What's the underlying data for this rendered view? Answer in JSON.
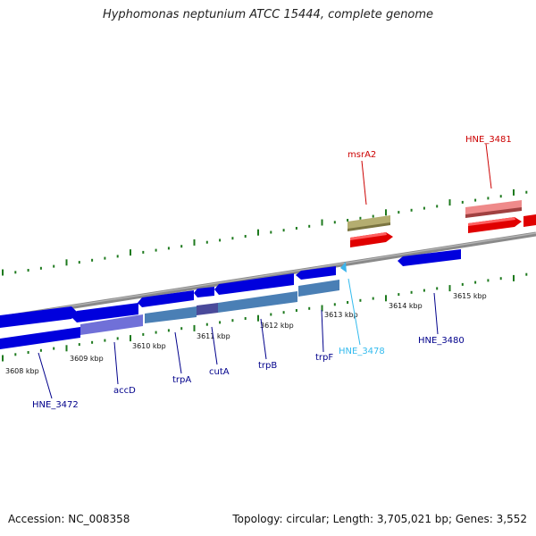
{
  "title": "Hyphomonas neptunium ATCC 15444, complete genome",
  "footer": {
    "accession": "Accession: NC_008358",
    "topology": "Topology: circular; Length: 3,705,021 bp; Genes: 3,552"
  },
  "colors": {
    "background": "#ffffff",
    "backbone": "#8a8a8a",
    "tick": "#1e7a1e",
    "cds_forward": "#e00000",
    "cds_reverse": "#0000dd",
    "cds_reverse_light": "#2a2aee",
    "gene_reverse_pale": "#4a7fb5",
    "trna": "#3cb4ec",
    "rrna_like": "#b4ad70",
    "label_blue": "#00008b",
    "label_red": "#cc0000",
    "label_cyan": "#33bbee"
  },
  "axis": {
    "unit": "kbp",
    "ticks": [
      "3608 kbp",
      "3609 kbp",
      "3610 kbp",
      "3611 kbp",
      "3612 kbp",
      "3613 kbp",
      "3614 kbp",
      "3615 kbp"
    ]
  },
  "genes": [
    {
      "label": "HNE_3472",
      "strand": "reverse",
      "color": "label_blue"
    },
    {
      "label": "accD",
      "strand": "reverse",
      "color": "label_blue"
    },
    {
      "label": "trpA",
      "strand": "reverse",
      "color": "label_blue"
    },
    {
      "label": "cutA",
      "strand": "reverse",
      "color": "label_blue"
    },
    {
      "label": "trpB",
      "strand": "reverse",
      "color": "label_blue"
    },
    {
      "label": "trpF",
      "strand": "reverse",
      "color": "label_blue"
    },
    {
      "label": "HNE_3478",
      "strand": "reverse",
      "color": "label_cyan"
    },
    {
      "label": "HNE_3480",
      "strand": "reverse",
      "color": "label_blue"
    },
    {
      "label": "msrA2",
      "strand": "forward",
      "color": "label_red"
    },
    {
      "label": "HNE_3481",
      "strand": "forward",
      "color": "label_red"
    }
  ]
}
